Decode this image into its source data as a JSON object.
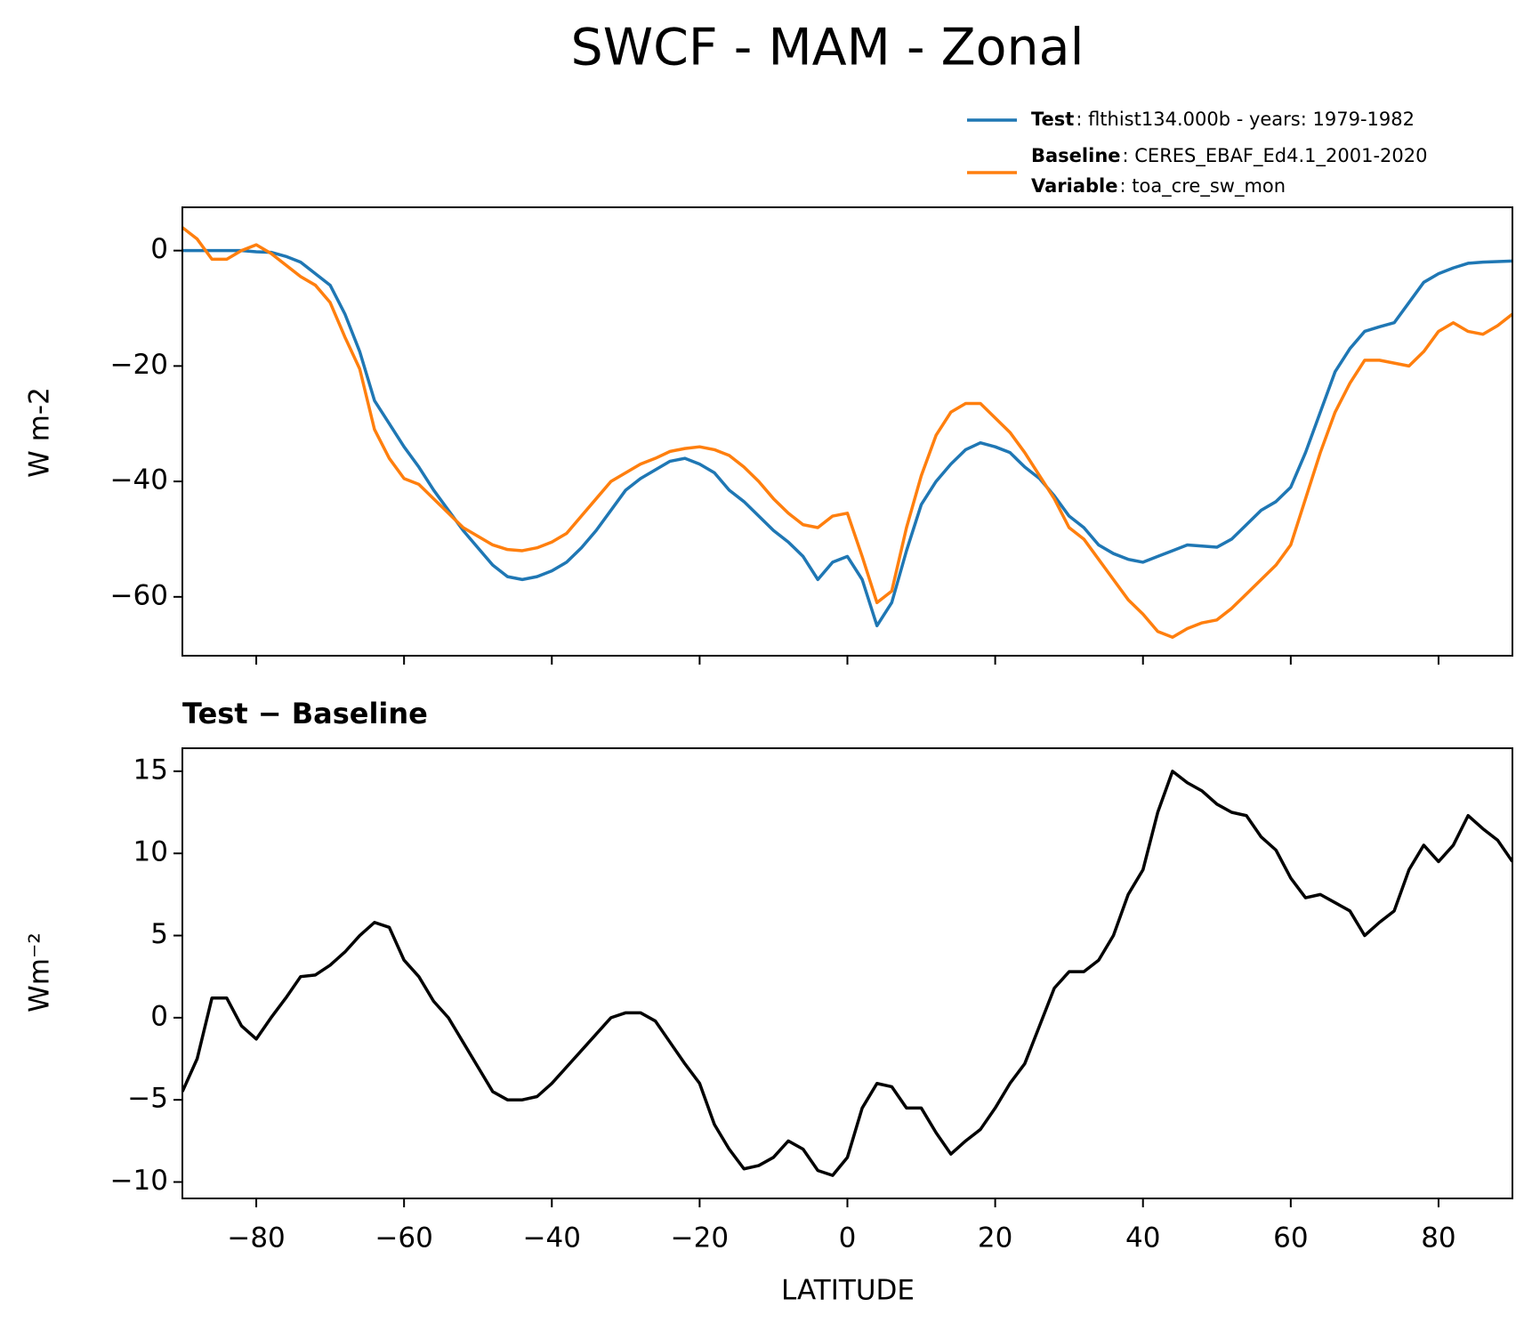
{
  "title": "SWCF - MAM - Zonal",
  "chart_data": [
    {
      "type": "line",
      "ylabel": "W m-2",
      "x": [
        -90,
        -88,
        -86,
        -84,
        -82,
        -80,
        -78,
        -76,
        -74,
        -72,
        -70,
        -68,
        -66,
        -64,
        -62,
        -60,
        -58,
        -56,
        -54,
        -52,
        -50,
        -48,
        -46,
        -44,
        -42,
        -40,
        -38,
        -36,
        -34,
        -32,
        -30,
        -28,
        -26,
        -24,
        -22,
        -20,
        -18,
        -16,
        -14,
        -12,
        -10,
        -8,
        -6,
        -4,
        -2,
        0,
        2,
        4,
        6,
        8,
        10,
        12,
        14,
        16,
        18,
        20,
        22,
        24,
        26,
        28,
        30,
        32,
        34,
        36,
        38,
        40,
        42,
        44,
        46,
        48,
        50,
        52,
        54,
        56,
        58,
        60,
        62,
        64,
        66,
        68,
        70,
        72,
        74,
        76,
        78,
        80,
        82,
        84,
        86,
        88,
        90
      ],
      "series": [
        {
          "name": "Test",
          "detail": ": flthist134.000b - years: 1979-1982",
          "color": "#1f77b4",
          "values": [
            0,
            0,
            0,
            0,
            0,
            -0.2,
            -0.3,
            -1,
            -2,
            -4,
            -6,
            -11,
            -17.5,
            -26,
            -30,
            -34,
            -37.5,
            -41.5,
            -45,
            -48.5,
            -51.5,
            -54.5,
            -56.5,
            -57,
            -56.5,
            -55.5,
            -54,
            -51.5,
            -48.5,
            -45,
            -41.5,
            -39.5,
            -38,
            -36.5,
            -36,
            -37,
            -38.5,
            -41.5,
            -43.5,
            -46,
            -48.5,
            -50.5,
            -53,
            -57,
            -54,
            -53,
            -57,
            -65,
            -61,
            -52,
            -44,
            -40,
            -37,
            -34.5,
            -33.3,
            -34,
            -35,
            -37.5,
            -39.5,
            -42.5,
            -46,
            -48,
            -51,
            -52.5,
            -53.5,
            -54,
            -53,
            -52,
            -51,
            -51.2,
            -51.4,
            -50,
            -47.5,
            -45,
            -43.5,
            -41,
            -35,
            -28,
            -21,
            -17,
            -14,
            -13.2,
            -12.5,
            -9,
            -5.5,
            -4,
            -3,
            -2.2,
            -2,
            -1.9,
            -1.8
          ]
        },
        {
          "name": "Baseline",
          "detail": ": CERES_EBAF_Ed4.1_2001-2020",
          "color": "#ff7f0e",
          "values": [
            4,
            2,
            -1.5,
            -1.5,
            0,
            1,
            -0.5,
            -2.5,
            -4.5,
            -6,
            -9,
            -15,
            -20.5,
            -31,
            -36,
            -39.5,
            -40.5,
            -43,
            -45.5,
            -48,
            -49.5,
            -51,
            -51.8,
            -52,
            -51.5,
            -50.5,
            -49,
            -46,
            -43,
            -40,
            -38.5,
            -37,
            -36,
            -34.8,
            -34.3,
            -34,
            -34.5,
            -35.5,
            -37.5,
            -40,
            -43,
            -45.5,
            -47.5,
            -48,
            -46,
            -45.5,
            -53,
            -61,
            -59,
            -48,
            -39,
            -32,
            -28,
            -26.5,
            -26.5,
            -29,
            -31.5,
            -35,
            -39,
            -43,
            -48,
            -50,
            -53.5,
            -57,
            -60.5,
            -63,
            -66,
            -67,
            -65.5,
            -64.5,
            -64,
            -62,
            -59.5,
            -57,
            -54.5,
            -51,
            -43,
            -35,
            -28,
            -23,
            -19,
            -19,
            -19.5,
            -20,
            -17.5,
            -14,
            -12.5,
            -14,
            -14.5,
            -13,
            -11
          ]
        }
      ],
      "variable": {
        "name": "Variable",
        "detail": ": toa_cre_sw_mon"
      },
      "xlim": [
        -90,
        90
      ],
      "xticks": [
        -80,
        -60,
        -40,
        -20,
        0,
        20,
        40,
        60,
        80
      ],
      "ylim": [
        -70.2,
        7.5
      ],
      "yticks": [
        {
          "value": 0,
          "label": "0"
        },
        {
          "value": -20,
          "label": "−20"
        },
        {
          "value": -40,
          "label": "−40"
        },
        {
          "value": -60,
          "label": "−60"
        }
      ]
    },
    {
      "type": "line",
      "title": "Test − Baseline",
      "ylabel": "Wm⁻²",
      "xlabel": "LATITUDE",
      "x": [
        -90,
        -88,
        -86,
        -84,
        -82,
        -80,
        -78,
        -76,
        -74,
        -72,
        -70,
        -68,
        -66,
        -64,
        -62,
        -60,
        -58,
        -56,
        -54,
        -52,
        -50,
        -48,
        -46,
        -44,
        -42,
        -40,
        -38,
        -36,
        -34,
        -32,
        -30,
        -28,
        -26,
        -24,
        -22,
        -20,
        -18,
        -16,
        -14,
        -12,
        -10,
        -8,
        -6,
        -4,
        -2,
        0,
        2,
        4,
        6,
        8,
        10,
        12,
        14,
        16,
        18,
        20,
        22,
        24,
        26,
        28,
        30,
        32,
        34,
        36,
        38,
        40,
        42,
        44,
        46,
        48,
        50,
        52,
        54,
        56,
        58,
        60,
        62,
        64,
        66,
        68,
        70,
        72,
        74,
        76,
        78,
        80,
        82,
        84,
        86,
        88,
        90
      ],
      "series": [
        {
          "color": "#000000",
          "values": [
            -4.5,
            -2.5,
            1.2,
            1.2,
            -0.5,
            -1.3,
            0,
            1.2,
            2.5,
            2.6,
            3.2,
            4,
            5,
            5.8,
            5.5,
            3.5,
            2.5,
            1,
            0,
            -1.5,
            -3,
            -4.5,
            -5,
            -5,
            -4.8,
            -4,
            -3,
            -2,
            -1,
            0,
            0.3,
            0.3,
            -0.2,
            -1.5,
            -2.8,
            -4,
            -6.5,
            -8,
            -9.2,
            -9,
            -8.5,
            -7.5,
            -8,
            -9.3,
            -9.6,
            -8.5,
            -5.5,
            -4,
            -4.2,
            -5.5,
            -5.5,
            -7,
            -8.3,
            -7.5,
            -6.8,
            -5.5,
            -4,
            -2.8,
            -0.5,
            1.8,
            2.8,
            2.8,
            3.5,
            5,
            7.5,
            9,
            12.5,
            15,
            14.3,
            13.8,
            13,
            12.5,
            12.3,
            11,
            10.2,
            8.5,
            7.3,
            7.5,
            7,
            6.5,
            5,
            5.8,
            6.5,
            9,
            10.5,
            9.5,
            10.5,
            12.3,
            11.5,
            10.8,
            9.5
          ]
        }
      ],
      "xlim": [
        -90,
        90
      ],
      "xticks": [
        {
          "value": -80,
          "label": "−80"
        },
        {
          "value": -60,
          "label": "−60"
        },
        {
          "value": -40,
          "label": "−40"
        },
        {
          "value": -20,
          "label": "−20"
        },
        {
          "value": 0,
          "label": "0"
        },
        {
          "value": 20,
          "label": "20"
        },
        {
          "value": 40,
          "label": "40"
        },
        {
          "value": 60,
          "label": "60"
        },
        {
          "value": 80,
          "label": "80"
        }
      ],
      "ylim": [
        -11.0,
        16.4
      ],
      "yticks": [
        {
          "value": 15,
          "label": "15"
        },
        {
          "value": 10,
          "label": "10"
        },
        {
          "value": 5,
          "label": "5"
        },
        {
          "value": 0,
          "label": "0"
        },
        {
          "value": -5,
          "label": "−5"
        },
        {
          "value": -10,
          "label": "−10"
        }
      ]
    }
  ]
}
